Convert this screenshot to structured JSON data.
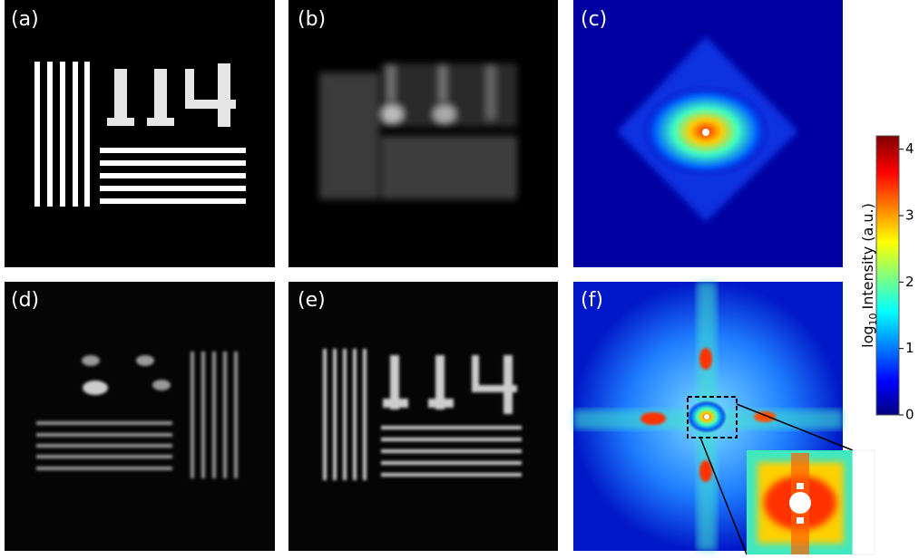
{
  "panels": [
    {
      "label": "(a)"
    },
    {
      "label": "(b)"
    },
    {
      "label": "(c)"
    },
    {
      "label": "(d)"
    },
    {
      "label": "(e)"
    },
    {
      "label": "(f)"
    }
  ],
  "colorbar": {
    "label_main": "log",
    "label_sub": "10",
    "label_rest": "Intensity (a.u.)",
    "lim": [
      0,
      4.2
    ],
    "ticks": [
      0,
      1,
      2,
      3,
      4
    ],
    "colormap": "jet"
  }
}
